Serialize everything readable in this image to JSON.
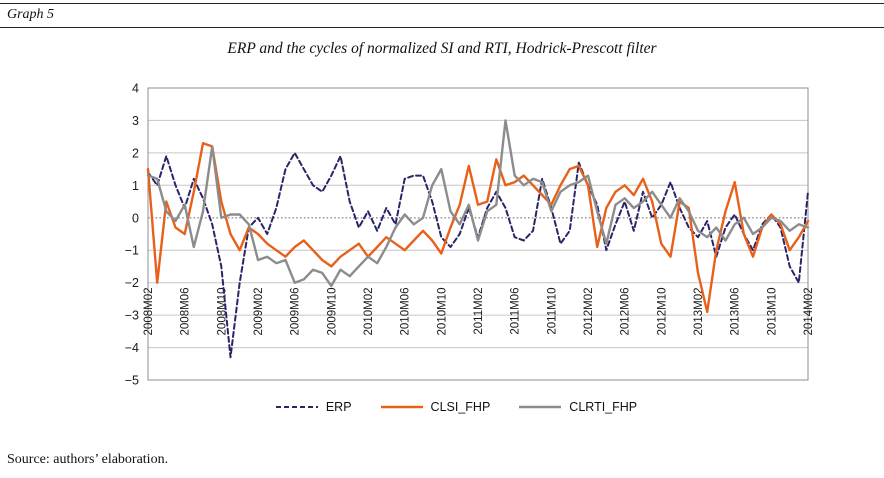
{
  "header": {
    "graph_label": "Graph 5"
  },
  "footer": {
    "source": "Source: authors’ elaboration."
  },
  "chart_data": {
    "type": "line",
    "title": "ERP and the cycles of normalized SI and RTI, Hodrick-Prescott filter",
    "xlabel": "",
    "ylabel": "",
    "ylim": [
      -5,
      4
    ],
    "y_ticks": [
      4,
      3,
      2,
      1,
      0,
      -1,
      -2,
      -3,
      -4,
      -5
    ],
    "grid": true,
    "zero_line": "dotted",
    "legend_position": "bottom",
    "tick_every": 4,
    "x": [
      "2008M02",
      "2008M03",
      "2008M04",
      "2008M05",
      "2008M06",
      "2008M07",
      "2008M08",
      "2008M09",
      "2008M10",
      "2008M11",
      "2008M12",
      "2009M01",
      "2009M02",
      "2009M03",
      "2009M04",
      "2009M05",
      "2009M06",
      "2009M07",
      "2009M08",
      "2009M09",
      "2009M10",
      "2009M11",
      "2009M12",
      "2010M01",
      "2010M02",
      "2010M03",
      "2010M04",
      "2010M05",
      "2010M06",
      "2010M07",
      "2010M08",
      "2010M09",
      "2010M10",
      "2010M11",
      "2010M12",
      "2011M01",
      "2011M02",
      "2011M03",
      "2011M04",
      "2011M05",
      "2011M06",
      "2011M07",
      "2011M08",
      "2011M09",
      "2011M10",
      "2011M11",
      "2011M12",
      "2012M01",
      "2012M02",
      "2012M03",
      "2012M04",
      "2012M05",
      "2012M06",
      "2012M07",
      "2012M08",
      "2012M09",
      "2012M10",
      "2012M11",
      "2012M12",
      "2013M01",
      "2013M02",
      "2013M03",
      "2013M04",
      "2013M05",
      "2013M06",
      "2013M07",
      "2013M08",
      "2013M09",
      "2013M10",
      "2013M11",
      "2013M12",
      "2014M01",
      "2014M02"
    ],
    "series": [
      {
        "name": "ERP",
        "color": "#2B2468",
        "dash": "dashed",
        "values": [
          1.4,
          1.0,
          1.9,
          1.0,
          0.3,
          1.2,
          0.6,
          -0.2,
          -1.5,
          -4.3,
          -2.0,
          -0.3,
          0.0,
          -0.5,
          0.3,
          1.5,
          2.0,
          1.5,
          1.0,
          0.8,
          1.3,
          1.9,
          0.5,
          -0.3,
          0.2,
          -0.4,
          0.3,
          -0.2,
          1.2,
          1.3,
          1.3,
          0.5,
          -0.6,
          -0.9,
          -0.5,
          0.3,
          -0.6,
          0.3,
          0.8,
          0.3,
          -0.6,
          -0.7,
          -0.4,
          1.2,
          0.3,
          -0.8,
          -0.4,
          1.7,
          1.0,
          0.4,
          -1.0,
          -0.2,
          0.5,
          -0.4,
          0.8,
          0.0,
          0.4,
          1.1,
          0.3,
          -0.3,
          -0.6,
          -0.1,
          -1.2,
          -0.3,
          0.1,
          -0.5,
          -1.0,
          -0.2,
          0.1,
          -0.3,
          -1.5,
          -2.0,
          0.8
        ]
      },
      {
        "name": "CLSI_FHP",
        "color": "#E8611A",
        "dash": "solid",
        "values": [
          1.5,
          -2.0,
          0.5,
          -0.3,
          -0.5,
          0.8,
          2.3,
          2.2,
          0.5,
          -0.5,
          -1.0,
          -0.3,
          -0.5,
          -0.8,
          -1.0,
          -1.2,
          -0.9,
          -0.7,
          -1.0,
          -1.3,
          -1.5,
          -1.2,
          -1.0,
          -0.8,
          -1.2,
          -0.9,
          -0.6,
          -0.8,
          -1.0,
          -0.7,
          -0.4,
          -0.7,
          -1.1,
          -0.3,
          0.4,
          1.6,
          0.4,
          0.5,
          1.8,
          1.0,
          1.1,
          1.3,
          1.0,
          0.7,
          0.4,
          1.0,
          1.5,
          1.6,
          1.0,
          -0.9,
          0.3,
          0.8,
          1.0,
          0.7,
          1.2,
          0.5,
          -0.8,
          -1.2,
          0.5,
          0.3,
          -1.7,
          -2.9,
          -1.0,
          0.2,
          1.1,
          -0.5,
          -1.2,
          -0.3,
          0.1,
          -0.2,
          -1.0,
          -0.6,
          -0.1
        ]
      },
      {
        "name": "CLRTI_FHP",
        "color": "#8C8C8C",
        "dash": "solid",
        "values": [
          1.3,
          1.2,
          0.2,
          -0.1,
          0.4,
          -0.9,
          0.2,
          2.2,
          0.0,
          0.1,
          0.1,
          -0.2,
          -1.3,
          -1.2,
          -1.4,
          -1.3,
          -2.0,
          -1.9,
          -1.6,
          -1.7,
          -2.1,
          -1.6,
          -1.8,
          -1.5,
          -1.2,
          -1.4,
          -0.9,
          -0.3,
          0.1,
          -0.2,
          0.0,
          1.0,
          1.5,
          0.2,
          -0.2,
          0.4,
          -0.7,
          0.2,
          0.4,
          3.0,
          1.3,
          1.0,
          1.2,
          1.1,
          0.2,
          0.8,
          1.0,
          1.1,
          1.3,
          0.2,
          -0.8,
          0.4,
          0.6,
          0.3,
          0.5,
          0.8,
          0.4,
          0.0,
          0.6,
          0.2,
          -0.4,
          -0.6,
          -0.3,
          -0.7,
          -0.2,
          0.0,
          -0.5,
          -0.3,
          0.0,
          -0.1,
          -0.4,
          -0.2,
          -0.3
        ]
      }
    ]
  }
}
